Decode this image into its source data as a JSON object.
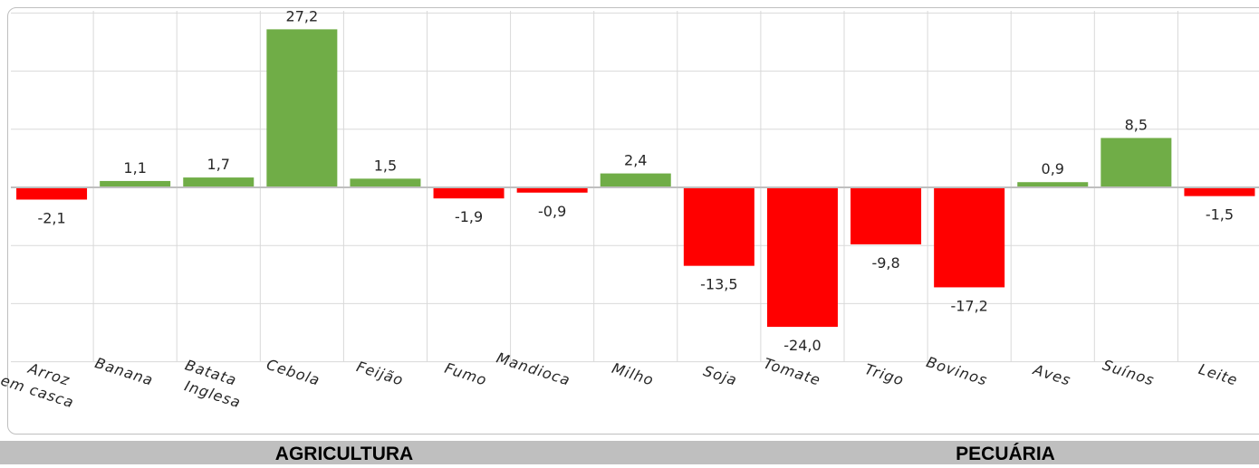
{
  "chart_data": {
    "type": "bar",
    "categories": [
      "Arroz em casca",
      "Banana",
      "Batata Inglesa",
      "Cebola",
      "Feijão",
      "Fumo",
      "Mandioca",
      "Milho",
      "Soja",
      "Tomate",
      "Trigo",
      "Bovinos",
      "Aves",
      "Suínos",
      "Leite"
    ],
    "values": [
      -2.1,
      1.1,
      1.7,
      27.2,
      1.5,
      -1.9,
      -0.9,
      2.4,
      -13.5,
      -24.0,
      -9.8,
      -17.2,
      0.9,
      8.5,
      -1.5
    ],
    "value_labels": [
      "-2,1",
      "1,1",
      "1,7",
      "27,2",
      "1,5",
      "-1,9",
      "-0,9",
      "2,4",
      "-13,5",
      "-24,0",
      "-9,8",
      "-17,2",
      "0,9",
      "8,5",
      "-1,5"
    ],
    "tick_labels": [
      [
        "Arroz",
        "em casca"
      ],
      [
        "Banana"
      ],
      [
        "Batata",
        "Inglesa"
      ],
      [
        "Cebola"
      ],
      [
        "Feijão"
      ],
      [
        "Fumo"
      ],
      [
        "Mandioca"
      ],
      [
        "Milho"
      ],
      [
        "Soja"
      ],
      [
        "Tomate"
      ],
      [
        "Trigo"
      ],
      [
        "Bovinos"
      ],
      [
        "Aves"
      ],
      [
        "Suínos"
      ],
      [
        "Leite"
      ]
    ],
    "groups": [
      {
        "name": "AGRICULTURA",
        "categories": [
          "Arroz em casca",
          "Banana",
          "Batata Inglesa",
          "Cebola",
          "Feijão",
          "Fumo",
          "Mandioca",
          "Milho",
          "Soja",
          "Tomate",
          "Trigo"
        ]
      },
      {
        "name": "PECUÁRIA",
        "categories": [
          "Bovinos",
          "Aves",
          "Suínos",
          "Leite"
        ]
      }
    ],
    "ylim": [
      -30,
      30
    ],
    "grid": true,
    "colors": {
      "positive": "#70ad47",
      "negative": "#ff0000",
      "grid": "#d9d9d9",
      "axis": "#bfbfbf"
    }
  },
  "footer": {
    "left_label": "AGRICULTURA",
    "right_label": "PECUÁRIA",
    "background": "#bfbfbf"
  }
}
